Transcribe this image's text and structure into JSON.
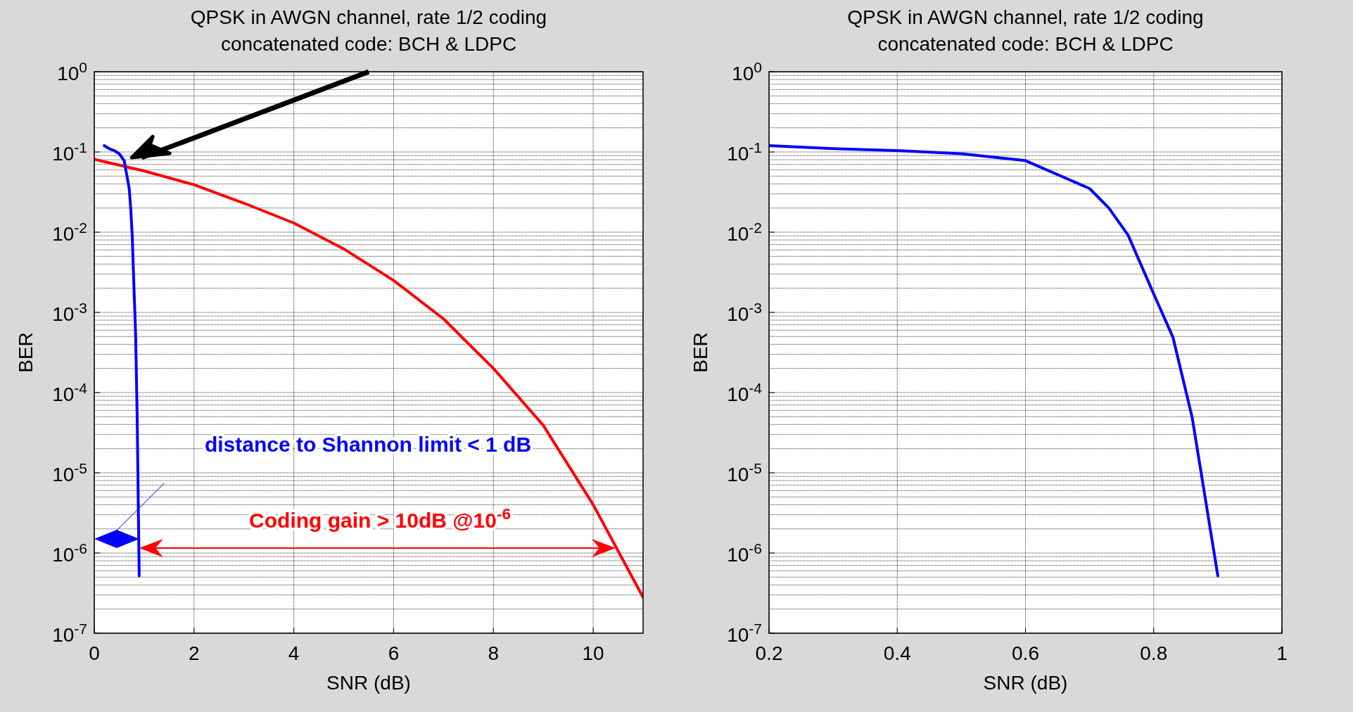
{
  "chart_data": [
    {
      "type": "line",
      "title": "QPSK in AWGN channel, rate 1/2 coding\nconcatenated code: BCH & LDPC",
      "xlabel": "SNR (dB)",
      "ylabel": "BER",
      "log": "y",
      "grid": true,
      "xlim": [
        0,
        11
      ],
      "xticks": [
        0,
        2,
        4,
        6,
        8,
        10
      ],
      "ylim": [
        1e-07,
        1
      ],
      "yticks": [
        {
          "value": 1,
          "label": "10$^{0}$"
        },
        {
          "value": 0.1,
          "label": "10$^{-1}$"
        },
        {
          "value": 0.01,
          "label": "10$^{-2}$"
        },
        {
          "value": 0.001,
          "label": "10$^{-3}$"
        },
        {
          "value": 0.0001,
          "label": "10$^{-4}$"
        },
        {
          "value": 1e-05,
          "label": "10$^{-5}$"
        },
        {
          "value": 1e-06,
          "label": "10$^{-6}$"
        },
        {
          "value": 1e-07,
          "label": "10$^{-7}$"
        }
      ],
      "annotations": [
        "distance to Shannon limit < 1 dB",
        "Coding gain > 10dB @10$^{-6}$"
      ],
      "series": [
        {
          "color": "#ff0000",
          "x": [
            0,
            1,
            2,
            3,
            4,
            5,
            6,
            7,
            8,
            9,
            10,
            11
          ],
          "values": [
            0.081,
            0.058,
            0.039,
            0.023,
            0.013,
            0.0062,
            0.0025,
            0.00083,
            0.0002,
            3.9e-05,
            4e-06,
            2.8e-07
          ]
        },
        {
          "color": "#0000ff",
          "x": [
            0.2,
            0.3,
            0.4,
            0.5,
            0.6,
            0.7,
            0.73,
            0.76,
            0.8,
            0.83,
            0.86,
            0.9
          ],
          "values": [
            0.12,
            0.11,
            0.104,
            0.095,
            0.078,
            0.035,
            0.02,
            0.0092,
            0.0017,
            0.00049,
            4.9e-05,
            5.2e-07
          ]
        }
      ]
    },
    {
      "type": "line",
      "title": "QPSK in AWGN channel, rate 1/2 coding\nconcatenated code: BCH & LDPC",
      "xlabel": "SNR (dB)",
      "ylabel": "BER",
      "log": "y",
      "grid": true,
      "xlim": [
        0.2,
        1
      ],
      "xticks": [
        0.2,
        0.4,
        0.6,
        0.8,
        1
      ],
      "ylim": [
        1e-07,
        1
      ],
      "yticks": [
        {
          "value": 1,
          "label": "10$^{0}$"
        },
        {
          "value": 0.1,
          "label": "10$^{-1}$"
        },
        {
          "value": 0.01,
          "label": "10$^{-2}$"
        },
        {
          "value": 0.001,
          "label": "10$^{-3}$"
        },
        {
          "value": 0.0001,
          "label": "10$^{-4}$"
        },
        {
          "value": 1e-05,
          "label": "10$^{-5}$"
        },
        {
          "value": 1e-06,
          "label": "10$^{-6}$"
        },
        {
          "value": 1e-07,
          "label": "10$^{-7}$"
        }
      ],
      "series": [
        {
          "color": "#0000ff",
          "x": [
            0.2,
            0.3,
            0.4,
            0.5,
            0.6,
            0.7,
            0.73,
            0.76,
            0.8,
            0.83,
            0.86,
            0.9
          ],
          "values": [
            0.12,
            0.11,
            0.104,
            0.095,
            0.078,
            0.035,
            0.02,
            0.0092,
            0.0017,
            0.00049,
            4.9e-05,
            5.2e-07
          ]
        }
      ]
    }
  ]
}
